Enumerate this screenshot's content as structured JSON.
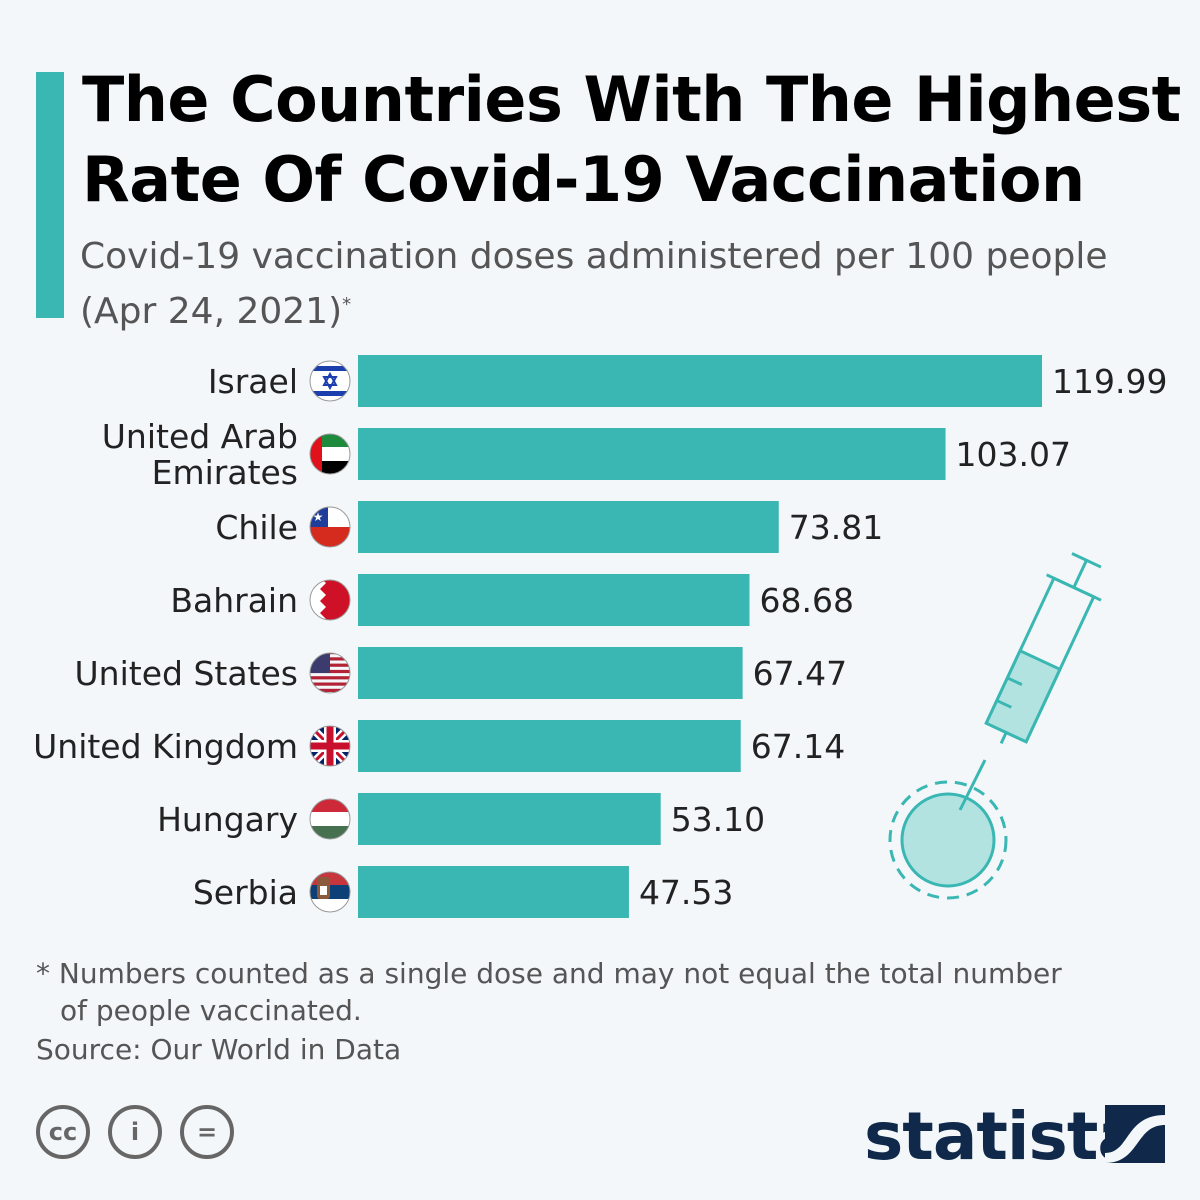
{
  "chart_data": {
    "type": "bar",
    "orientation": "horizontal",
    "title": "The Countries With The Highest Rate Of Covid-19 Vaccination",
    "subtitle": "Covid-19 vaccination doses administered per 100 people",
    "subtitle_date": "(Apr 24, 2021)",
    "subtitle_mark": "*",
    "categories": [
      "Israel",
      "United Arab Emirates",
      "Chile",
      "Bahrain",
      "United States",
      "United Kingdom",
      "Hungary",
      "Serbia"
    ],
    "category_lines": [
      [
        "Israel"
      ],
      [
        "United Arab",
        "Emirates"
      ],
      [
        "Chile"
      ],
      [
        "Bahrain"
      ],
      [
        "United States"
      ],
      [
        "United Kingdom"
      ],
      [
        "Hungary"
      ],
      [
        "Serbia"
      ]
    ],
    "values": [
      119.99,
      103.07,
      73.81,
      68.68,
      67.47,
      67.14,
      53.1,
      47.53
    ],
    "value_labels": [
      "119.99",
      "103.07",
      "73.81",
      "68.68",
      "67.47",
      "67.14",
      "53.10",
      "47.53"
    ],
    "flags": [
      "israel-flag",
      "uae-flag",
      "chile-flag",
      "bahrain-flag",
      "usa-flag",
      "uk-flag",
      "hungary-flag",
      "serbia-flag"
    ],
    "bar_color": "#3ab7b3",
    "grid": false,
    "xlim": [
      0,
      120
    ]
  },
  "footnote": {
    "line1": "* Numbers counted as a single dose and may not equal the total number",
    "line2": "of people vaccinated."
  },
  "source": "Source: Our World in Data",
  "license": {
    "cc": "cc",
    "by": "i",
    "nd": "="
  },
  "brand": {
    "name": "statista",
    "color": "#10294a"
  }
}
